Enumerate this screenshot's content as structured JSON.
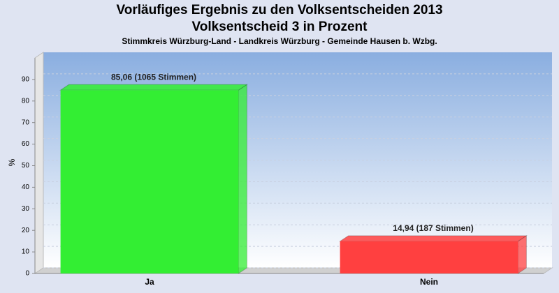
{
  "chart_data": {
    "type": "bar",
    "title": [
      "Vorläufiges Ergebnis zu den Volksentscheiden 2013",
      "Volksentscheid 3 in Prozent"
    ],
    "subtitle": "Stimmkreis Würzburg-Land - Landkreis Würzburg - Gemeinde Hausen b. Wzbg.",
    "y_label": "%",
    "categories": [
      "Ja",
      "Nein"
    ],
    "values": [
      85.06,
      14.94
    ],
    "value_labels": [
      "85,06 (1065 Stimmen)",
      "14,94 (187 Stimmen)"
    ],
    "colors": [
      "#33ee33",
      "#ff4040"
    ],
    "ylim": [
      0,
      100
    ],
    "yticks": [
      0,
      10,
      20,
      30,
      40,
      50,
      60,
      70,
      80,
      90
    ],
    "grid": true
  }
}
